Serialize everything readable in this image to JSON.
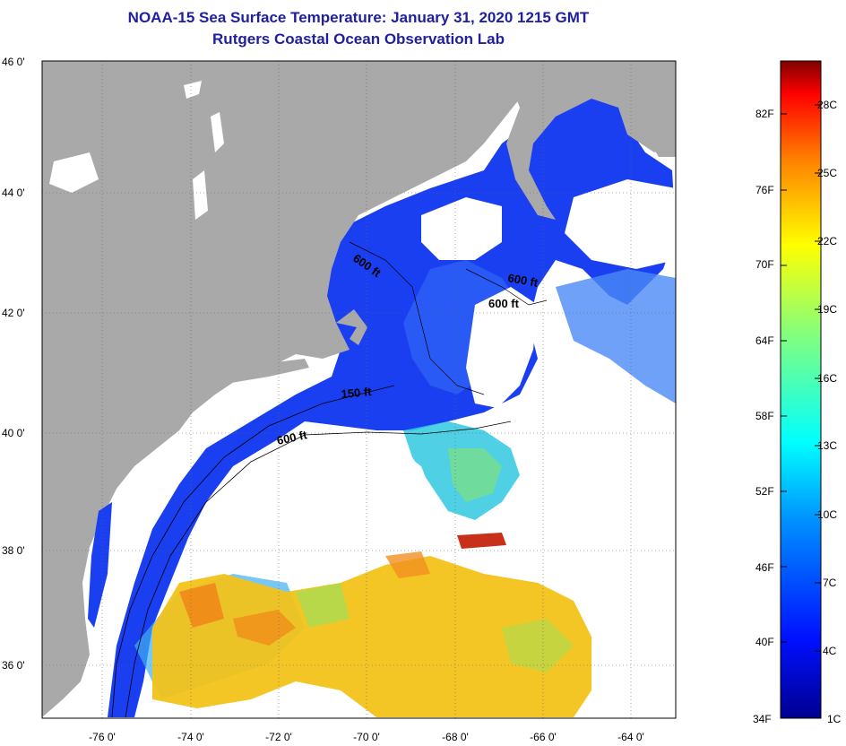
{
  "title": "NOAA-15 Sea Surface Temperature:  January 31, 2020 1215 GMT",
  "subtitle": "Rutgers Coastal Ocean Observation Lab",
  "lat_labels": [
    "46 0'",
    "44 0'",
    "42 0'",
    "40 0'",
    "38 0'",
    "36 0'"
  ],
  "lon_labels": [
    "-76 0'",
    "-74 0'",
    "-72 0'",
    "-70 0'",
    "-68 0'",
    "-66 0'",
    "-64 0'"
  ],
  "contour_labels": [
    "600 ft",
    "600 ft",
    "600 ft",
    "150 ft",
    "600 ft"
  ],
  "colorbar": {
    "fahrenheit": [
      "34F",
      "40F",
      "46F",
      "52F",
      "58F",
      "64F",
      "70F",
      "76F",
      "82F"
    ],
    "celsius": [
      "1C",
      "4C",
      "7C",
      "10C",
      "13C",
      "16C",
      "19C",
      "22C",
      "25C",
      "28C"
    ]
  },
  "colors": {
    "land": "#a9a9a9",
    "cloud": "#ffffff",
    "title": "#1f1fa0",
    "cold_water": "#1a3ff0",
    "warm_water": "#f2b21a"
  }
}
